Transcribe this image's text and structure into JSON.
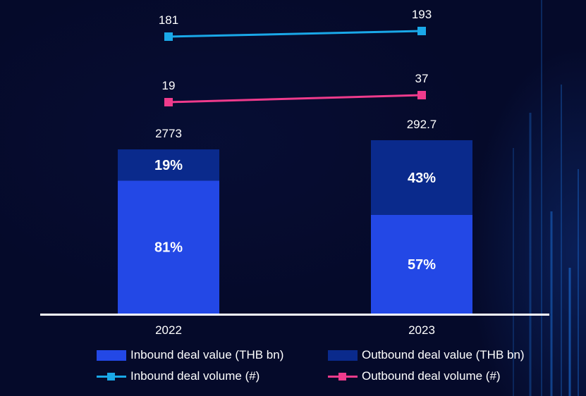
{
  "chart_data": {
    "type": "bar",
    "stacked": true,
    "categories": [
      "2022",
      "2023"
    ],
    "bar_totals": [
      "2773",
      "292.7"
    ],
    "series": [
      {
        "name": "Inbound deal value (THB bn)",
        "kind": "bar",
        "share_pct": [
          81,
          57
        ],
        "labels": [
          "81%",
          "57%"
        ],
        "color": "#2348e6"
      },
      {
        "name": "Outbound deal value (THB bn)",
        "kind": "bar",
        "share_pct": [
          19,
          43
        ],
        "labels": [
          "19%",
          "43%"
        ],
        "color": "#0a2a8c"
      },
      {
        "name": "Inbound deal volume (#)",
        "kind": "line",
        "values": [
          181,
          193
        ],
        "labels": [
          "181",
          "193"
        ],
        "color": "#1aa8e8"
      },
      {
        "name": "Outbound deal volume (#)",
        "kind": "line",
        "values": [
          19,
          37
        ],
        "labels": [
          "19",
          "37"
        ],
        "color": "#ef3b8c"
      }
    ],
    "axis_color": "#ffffff",
    "legend_position": "bottom"
  }
}
